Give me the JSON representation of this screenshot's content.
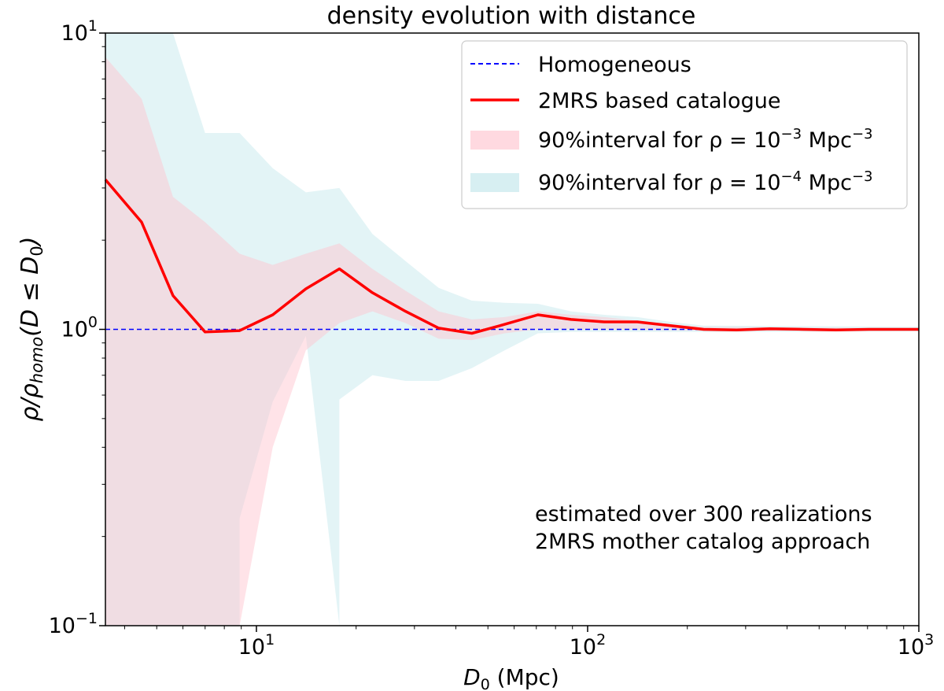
{
  "chart_data": {
    "type": "line",
    "title": "density evolution with distance",
    "xlabel": {
      "var": "D",
      "sub": "0",
      "unit": " (Mpc)"
    },
    "ylabel": {
      "rho": "ρ",
      "slash": "/",
      "rho2": "ρ",
      "sub": "homo",
      "rest": "(D ≤ D",
      "sub2": "0",
      "close": ")"
    },
    "xscale": "log",
    "yscale": "log",
    "xlim": [
      3.5,
      1000
    ],
    "ylim": [
      0.1,
      10
    ],
    "xticks": [
      {
        "value": 10,
        "base": "10",
        "exp": "1"
      },
      {
        "value": 100,
        "base": "10",
        "exp": "2"
      },
      {
        "value": 1000,
        "base": "10",
        "exp": "3"
      }
    ],
    "yticks": [
      {
        "value": 0.1,
        "base": "10",
        "exp": "−1"
      },
      {
        "value": 1,
        "base": "10",
        "exp": "0"
      },
      {
        "value": 10,
        "base": "10",
        "exp": "1"
      }
    ],
    "series": [
      {
        "name": "2MRS based catalogue",
        "color": "#ff0000",
        "points": [
          [
            3.5,
            3.2
          ],
          [
            4.5,
            2.3
          ],
          [
            5.6,
            1.3
          ],
          [
            7.0,
            0.98
          ],
          [
            8.9,
            0.99
          ],
          [
            11.2,
            1.12
          ],
          [
            14.1,
            1.37
          ],
          [
            17.8,
            1.6
          ],
          [
            22.4,
            1.33
          ],
          [
            28.2,
            1.15
          ],
          [
            35.5,
            1.01
          ],
          [
            44.7,
            0.97
          ],
          [
            56.2,
            1.04
          ],
          [
            70.8,
            1.12
          ],
          [
            89.1,
            1.08
          ],
          [
            112.2,
            1.06
          ],
          [
            141.3,
            1.06
          ],
          [
            177.8,
            1.03
          ],
          [
            223.9,
            1.0
          ],
          [
            281.8,
            0.995
          ],
          [
            354.8,
            1.005
          ],
          [
            446.7,
            1.0
          ],
          [
            562.3,
            0.995
          ],
          [
            707.9,
            1.0
          ],
          [
            891.3,
            1.0
          ],
          [
            1000,
            1.0
          ]
        ]
      }
    ],
    "reference_line": {
      "name": "Homogeneous",
      "value": 1,
      "color": "#0000ff",
      "style": "dashed"
    },
    "bands": [
      {
        "name_prefix": "90%interval for ",
        "rho": "ρ",
        "eq": " = 10",
        "exp": "−3",
        "unit": " Mpc",
        "unit_exp": "−3",
        "color": "#ffc0cb",
        "opacity": 0.45,
        "upper": [
          [
            3.5,
            8.3
          ],
          [
            4.5,
            6.0
          ],
          [
            5.6,
            2.8
          ],
          [
            7.0,
            2.3
          ],
          [
            8.9,
            1.8
          ],
          [
            11.2,
            1.65
          ],
          [
            14.1,
            1.8
          ],
          [
            17.8,
            1.95
          ],
          [
            22.4,
            1.6
          ],
          [
            28.2,
            1.35
          ],
          [
            35.5,
            1.15
          ],
          [
            44.7,
            1.08
          ],
          [
            56.2,
            1.1
          ],
          [
            70.8,
            1.15
          ],
          [
            89.1,
            1.12
          ],
          [
            112.2,
            1.1
          ],
          [
            141.3,
            1.07
          ],
          [
            177.8,
            1.04
          ],
          [
            223.9,
            1.02
          ],
          [
            1000,
            1.01
          ]
        ],
        "lower": [
          [
            3.5,
            0.1
          ],
          [
            8.9,
            0.1
          ],
          [
            8.9,
            0.1
          ],
          [
            11.2,
            0.4
          ],
          [
            14.1,
            0.85
          ],
          [
            17.8,
            1.05
          ],
          [
            22.4,
            1.15
          ],
          [
            28.2,
            1.05
          ],
          [
            35.5,
            0.93
          ],
          [
            44.7,
            0.92
          ],
          [
            56.2,
            0.97
          ],
          [
            70.8,
            1.0
          ],
          [
            89.1,
            1.0
          ],
          [
            112.2,
            1.0
          ],
          [
            223.9,
            0.99
          ],
          [
            1000,
            0.99
          ]
        ]
      },
      {
        "name_prefix": "90%interval for ",
        "rho": "ρ",
        "eq": " = 10",
        "exp": "−4",
        "unit": " Mpc",
        "unit_exp": "−3",
        "color": "#b0e0e6",
        "opacity": 0.35,
        "upper": [
          [
            3.5,
            10
          ],
          [
            5.6,
            10
          ],
          [
            7.0,
            4.6
          ],
          [
            8.9,
            4.6
          ],
          [
            11.2,
            3.5
          ],
          [
            14.1,
            2.9
          ],
          [
            17.8,
            3.0
          ],
          [
            22.4,
            2.1
          ],
          [
            28.2,
            1.7
          ],
          [
            35.5,
            1.38
          ],
          [
            44.7,
            1.25
          ],
          [
            56.2,
            1.23
          ],
          [
            70.8,
            1.22
          ],
          [
            89.1,
            1.15
          ],
          [
            112.2,
            1.12
          ],
          [
            141.3,
            1.1
          ],
          [
            177.8,
            1.06
          ],
          [
            223.9,
            1.03
          ],
          [
            1000,
            1.02
          ]
        ],
        "lower": [
          [
            3.5,
            0.1
          ],
          [
            8.9,
            0.1
          ],
          [
            8.9,
            0.23
          ],
          [
            11.2,
            0.57
          ],
          [
            14.1,
            0.95
          ],
          [
            17.8,
            0.1
          ],
          [
            17.8,
            0.58
          ],
          [
            22.4,
            0.7
          ],
          [
            28.2,
            0.67
          ],
          [
            35.5,
            0.67
          ],
          [
            44.7,
            0.74
          ],
          [
            56.2,
            0.85
          ],
          [
            70.8,
            0.97
          ],
          [
            89.1,
            0.98
          ],
          [
            112.2,
            0.98
          ],
          [
            223.9,
            0.98
          ],
          [
            1000,
            0.985
          ]
        ]
      }
    ],
    "annotation": [
      "estimated over 300 realizations",
      "2MRS mother catalog approach"
    ],
    "legend": {
      "position": "top-right"
    }
  }
}
